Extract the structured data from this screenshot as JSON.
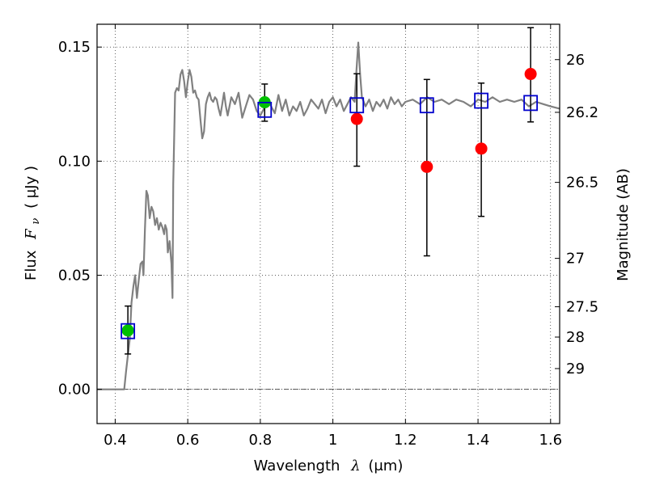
{
  "chart_data": {
    "type": "scatter",
    "xlabel": "Wavelength",
    "xlabel_symbol": "λ",
    "xlabel_unit": "(μm)",
    "ylabel": "Flux",
    "ylabel_symbol": "F",
    "ylabel_subscript": "ν",
    "ylabel_unit": "( μJy )",
    "y2label": "Magnitude (AB)",
    "xlim": [
      0.35,
      1.625
    ],
    "ylim": [
      -0.015,
      0.16
    ],
    "grid": true,
    "grid_style": "dotted",
    "x_ticks": [
      {
        "value": 0.4,
        "label": "0.4"
      },
      {
        "value": 0.6,
        "label": "0.6"
      },
      {
        "value": 0.8,
        "label": "0.8"
      },
      {
        "value": 1.0,
        "label": "1"
      },
      {
        "value": 1.2,
        "label": "1.2"
      },
      {
        "value": 1.4,
        "label": "1.4"
      },
      {
        "value": 1.6,
        "label": "1.6"
      }
    ],
    "y_ticks": [
      {
        "value": 0.0,
        "label": "0.00"
      },
      {
        "value": 0.05,
        "label": "0.05"
      },
      {
        "value": 0.1,
        "label": "0.10"
      },
      {
        "value": 0.15,
        "label": "0.15"
      }
    ],
    "y2_ticks": [
      {
        "flux": 0.1445,
        "label": "26"
      },
      {
        "flux": 0.1214,
        "label": "26.2"
      },
      {
        "flux": 0.0907,
        "label": "26.5"
      },
      {
        "flux": 0.0574,
        "label": "27"
      },
      {
        "flux": 0.0362,
        "label": "27.5"
      },
      {
        "flux": 0.0229,
        "label": "28"
      },
      {
        "flux": 0.0091,
        "label": "29"
      }
    ],
    "zero_line": 0.0,
    "colors": {
      "model": "#808080",
      "green": "#00c000",
      "red": "#ff0000",
      "squares": "#0000cc",
      "errorbars": "#000000"
    },
    "series": [
      {
        "name": "model spectrum",
        "kind": "line",
        "x": [
          0.35,
          0.42,
          0.425,
          0.43,
          0.44,
          0.445,
          0.45,
          0.455,
          0.46,
          0.465,
          0.47,
          0.475,
          0.478,
          0.482,
          0.486,
          0.49,
          0.495,
          0.5,
          0.505,
          0.51,
          0.515,
          0.52,
          0.525,
          0.53,
          0.535,
          0.538,
          0.542,
          0.545,
          0.55,
          0.555,
          0.558,
          0.56,
          0.565,
          0.57,
          0.575,
          0.58,
          0.585,
          0.59,
          0.595,
          0.6,
          0.605,
          0.61,
          0.615,
          0.62,
          0.625,
          0.63,
          0.635,
          0.64,
          0.645,
          0.65,
          0.655,
          0.66,
          0.665,
          0.67,
          0.675,
          0.68,
          0.685,
          0.69,
          0.695,
          0.7,
          0.705,
          0.71,
          0.72,
          0.73,
          0.74,
          0.75,
          0.76,
          0.77,
          0.78,
          0.79,
          0.8,
          0.81,
          0.82,
          0.83,
          0.84,
          0.85,
          0.86,
          0.87,
          0.88,
          0.89,
          0.9,
          0.91,
          0.92,
          0.93,
          0.94,
          0.95,
          0.96,
          0.97,
          0.98,
          0.99,
          1.0,
          1.01,
          1.02,
          1.03,
          1.04,
          1.05,
          1.06,
          1.065,
          1.07,
          1.075,
          1.08,
          1.09,
          1.1,
          1.11,
          1.12,
          1.13,
          1.14,
          1.15,
          1.16,
          1.17,
          1.18,
          1.19,
          1.2,
          1.22,
          1.24,
          1.26,
          1.28,
          1.3,
          1.32,
          1.34,
          1.36,
          1.38,
          1.4,
          1.42,
          1.44,
          1.46,
          1.48,
          1.5,
          1.52,
          1.54,
          1.56,
          1.58,
          1.6,
          1.625
        ],
        "y": [
          0.0,
          0.0,
          0.0,
          0.008,
          0.022,
          0.038,
          0.045,
          0.05,
          0.04,
          0.048,
          0.055,
          0.056,
          0.05,
          0.07,
          0.087,
          0.085,
          0.075,
          0.08,
          0.078,
          0.072,
          0.075,
          0.07,
          0.073,
          0.071,
          0.068,
          0.072,
          0.07,
          0.06,
          0.065,
          0.055,
          0.04,
          0.09,
          0.13,
          0.132,
          0.131,
          0.138,
          0.14,
          0.135,
          0.128,
          0.135,
          0.14,
          0.137,
          0.13,
          0.131,
          0.128,
          0.127,
          0.118,
          0.11,
          0.113,
          0.125,
          0.128,
          0.13,
          0.127,
          0.126,
          0.128,
          0.127,
          0.123,
          0.12,
          0.125,
          0.13,
          0.124,
          0.12,
          0.128,
          0.125,
          0.13,
          0.119,
          0.124,
          0.129,
          0.127,
          0.122,
          0.12,
          0.123,
          0.127,
          0.124,
          0.121,
          0.129,
          0.122,
          0.127,
          0.12,
          0.124,
          0.122,
          0.126,
          0.12,
          0.123,
          0.127,
          0.125,
          0.123,
          0.127,
          0.121,
          0.126,
          0.128,
          0.124,
          0.127,
          0.122,
          0.125,
          0.128,
          0.126,
          0.14,
          0.152,
          0.138,
          0.128,
          0.124,
          0.127,
          0.122,
          0.126,
          0.124,
          0.127,
          0.123,
          0.128,
          0.125,
          0.127,
          0.124,
          0.126,
          0.127,
          0.125,
          0.128,
          0.126,
          0.127,
          0.125,
          0.127,
          0.126,
          0.124,
          0.127,
          0.126,
          0.128,
          0.126,
          0.127,
          0.126,
          0.127,
          0.124,
          0.126,
          0.125,
          0.124,
          0.123
        ]
      },
      {
        "name": "green points",
        "kind": "circle",
        "x": [
          0.435,
          0.812
        ],
        "y": [
          0.0258,
          0.1258
        ]
      },
      {
        "name": "red points",
        "kind": "circle",
        "x": [
          1.066,
          1.259,
          1.409,
          1.545
        ],
        "y": [
          0.1185,
          0.0975,
          0.1055,
          0.1382
        ]
      },
      {
        "name": "blue squares",
        "kind": "square",
        "x": [
          0.435,
          0.812,
          1.066,
          1.259,
          1.409,
          1.545
        ],
        "y": [
          0.0255,
          0.1225,
          0.1245,
          0.1245,
          0.1265,
          0.1255
        ]
      }
    ],
    "errorbars": [
      {
        "x": 0.435,
        "low": 0.0155,
        "high": 0.0365
      },
      {
        "x": 0.812,
        "low": 0.1175,
        "high": 0.1338
      },
      {
        "x": 1.066,
        "low": 0.0978,
        "high": 0.1383
      },
      {
        "x": 1.259,
        "low": 0.0585,
        "high": 0.1358
      },
      {
        "x": 1.409,
        "low": 0.0758,
        "high": 0.1342
      },
      {
        "x": 1.545,
        "low": 0.1172,
        "high": 0.1585
      }
    ]
  }
}
